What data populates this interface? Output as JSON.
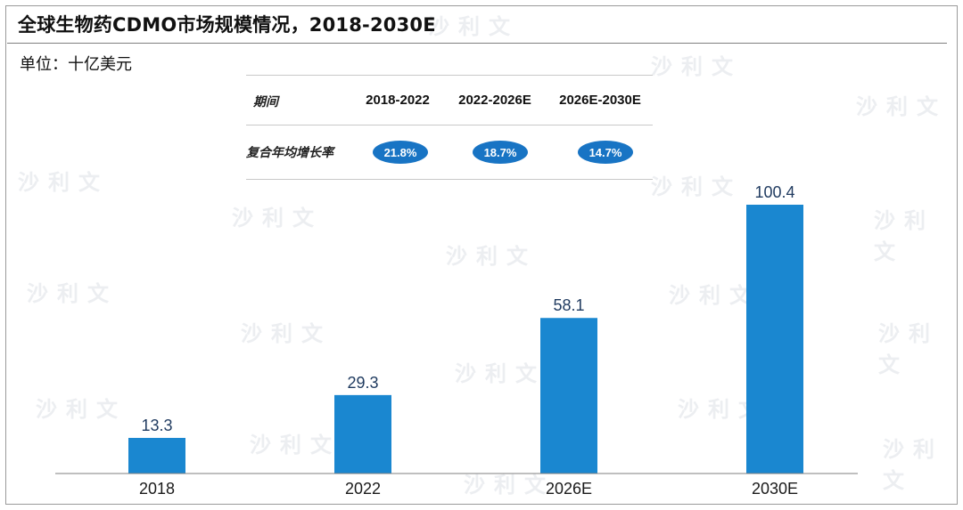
{
  "header": {
    "title": "全球生物药CDMO市场规模情况，2018-2030E",
    "unit": "单位：十亿美元"
  },
  "cagr_table": {
    "row1_label": "期间",
    "row2_label": "复合年均增长率",
    "periods": [
      "2018-2022",
      "2022-2026E",
      "2026E-2030E"
    ],
    "rates": [
      "21.8%",
      "18.7%",
      "14.7%"
    ]
  },
  "watermark": {
    "text": "沙利文"
  },
  "colors": {
    "bar": "#1a87d0",
    "pill": "#1874c4",
    "label": "#1f3a5f"
  },
  "chart_data": {
    "type": "bar",
    "categories": [
      "2018",
      "2022",
      "2026E",
      "2030E"
    ],
    "values": [
      13.3,
      29.3,
      58.1,
      100.4
    ],
    "title": "全球生物药CDMO市场规模情况，2018-2030E",
    "ylabel": "单位：十亿美元",
    "ylim": [
      0,
      100.4
    ],
    "grid": false,
    "legend": "none"
  }
}
